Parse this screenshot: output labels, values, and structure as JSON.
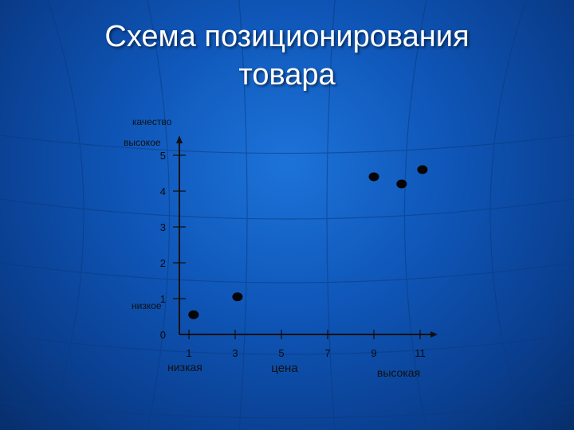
{
  "slide": {
    "title_line1": "Схема позиционирования",
    "title_line2": "товара"
  },
  "chart_data": {
    "type": "scatter",
    "ylabel": "качество",
    "xlabel": "цена",
    "y_high_label": "высокое",
    "y_low_label": "низкое",
    "x_low_label": "низкая",
    "x_high_label": "высокая",
    "y_ticks": [
      "0",
      "1",
      "2",
      "3",
      "4",
      "5"
    ],
    "x_ticks": [
      {
        "value": 1,
        "label": "1"
      },
      {
        "value": 3,
        "label": "3"
      },
      {
        "value": 5,
        "label": "5"
      },
      {
        "value": 7,
        "label": "7"
      },
      {
        "value": 9,
        "label": "9"
      },
      {
        "value": 11,
        "label": "11"
      }
    ],
    "xlim": [
      -1,
      12
    ],
    "ylim": [
      0,
      5
    ],
    "points": [
      {
        "x": 1.2,
        "y": 0.55
      },
      {
        "x": 3.1,
        "y": 1.05
      },
      {
        "x": 9.0,
        "y": 4.4
      },
      {
        "x": 10.2,
        "y": 4.2
      },
      {
        "x": 11.1,
        "y": 4.6
      }
    ],
    "colors": {
      "axis": "#111111",
      "tick_text": "#0a0a0a",
      "label_text": "#101010",
      "point": "#050505"
    }
  }
}
